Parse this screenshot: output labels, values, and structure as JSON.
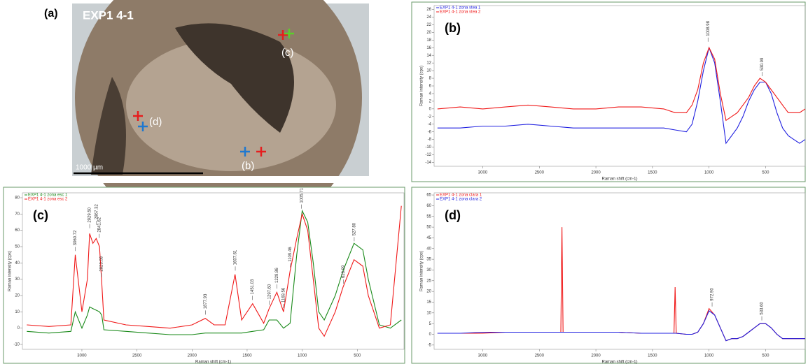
{
  "panel_a": {
    "label": "(a)",
    "title": "EXP1 4-1",
    "scale_bar": "1000 µm",
    "markers": [
      "(c)",
      "(d)",
      "(b)"
    ]
  },
  "chart_data": [
    {
      "type": "line",
      "panel_label": "(b)",
      "xlabel": "Raman shift (cm-1)",
      "ylabel": "Raman intensity (cps)",
      "legend": "upper left",
      "xlim": [
        3430,
        150
      ],
      "ylim": [
        -15,
        27
      ],
      "xticks": [
        3000,
        2500,
        2000,
        1500,
        1000,
        500
      ],
      "yticks": [
        -14,
        -12,
        -10,
        -8,
        -6,
        -4,
        -2,
        0,
        2,
        4,
        6,
        8,
        10,
        12,
        14,
        16,
        18,
        20,
        22,
        24,
        26
      ],
      "x": [
        3400,
        3200,
        3000,
        2800,
        2600,
        2400,
        2200,
        2000,
        1800,
        1600,
        1400,
        1300,
        1200,
        1150,
        1100,
        1050,
        1000,
        950,
        900,
        850,
        800,
        750,
        700,
        650,
        600,
        550,
        500,
        450,
        400,
        350,
        300,
        250,
        200,
        150
      ],
      "series": [
        {
          "name": "EXP1 4-1 zona stea 1",
          "color": "#1f1fe0",
          "values": [
            -5,
            -5,
            -4.5,
            -4.5,
            -4,
            -4.5,
            -5,
            -5,
            -5,
            -5,
            -5,
            -5.5,
            -6,
            -4,
            2,
            10,
            16,
            12,
            2,
            -9,
            -7,
            -5,
            -2,
            2,
            5,
            7,
            7,
            4,
            -1,
            -5,
            -7,
            -8,
            -9,
            -8
          ]
        },
        {
          "name": "EXP1 4-1 zona stea 2",
          "color": "#f01818",
          "values": [
            0,
            0.5,
            0,
            0.5,
            1,
            0.5,
            0,
            0,
            0.5,
            0.5,
            0,
            -1,
            -1,
            1,
            5,
            12,
            16,
            13,
            4,
            -3,
            -2,
            -1,
            1,
            3,
            6,
            8,
            7,
            5,
            3,
            1,
            -1,
            -1,
            -1,
            0
          ]
        }
      ],
      "annotations": [
        {
          "x": 1008.98,
          "y": 17,
          "text": "1008.98"
        },
        {
          "x": 530.99,
          "y": 8,
          "text": "530.99"
        }
      ]
    },
    {
      "type": "line",
      "panel_label": "(c)",
      "xlabel": "Raman shift (cm-1)",
      "ylabel": "Raman intensity (cps)",
      "legend": "upper left",
      "xlim": [
        3540,
        76
      ],
      "ylim": [
        -13,
        83
      ],
      "xticks": [
        3000,
        2500,
        2000,
        1500,
        1000,
        500
      ],
      "yticks": [
        -10,
        0,
        10,
        20,
        30,
        40,
        50,
        60,
        70,
        80
      ],
      "x": [
        3500,
        3300,
        3100,
        3060,
        3000,
        2950,
        2930,
        2900,
        2870,
        2840,
        2820,
        2800,
        2600,
        2400,
        2200,
        2000,
        1880,
        1800,
        1700,
        1610,
        1550,
        1450,
        1350,
        1300,
        1230,
        1170,
        1110,
        1050,
        1000,
        950,
        900,
        850,
        800,
        700,
        630,
        530,
        450,
        400,
        300,
        200,
        100
      ],
      "series": [
        {
          "name": "EXP1 4-1 zona esc 1",
          "color": "#1a8a1a",
          "values": [
            -2,
            -3,
            -2,
            10,
            0,
            8,
            13,
            12,
            11,
            10,
            8,
            -1,
            -2,
            -3,
            -4,
            -4,
            -3,
            -3,
            -3,
            -3,
            -3,
            -2,
            -1,
            5,
            5,
            0,
            3,
            45,
            72,
            65,
            40,
            10,
            5,
            20,
            35,
            52,
            48,
            30,
            2,
            0,
            5
          ]
        },
        {
          "name": "EXP1 4-1 zona esc 2",
          "color": "#f01818",
          "values": [
            2,
            1,
            2,
            45,
            10,
            30,
            58,
            52,
            55,
            50,
            28,
            5,
            2,
            1,
            0,
            2,
            6,
            2,
            2,
            33,
            5,
            15,
            3,
            12,
            22,
            10,
            35,
            55,
            70,
            60,
            30,
            0,
            -5,
            10,
            25,
            42,
            38,
            20,
            0,
            2,
            75
          ]
        }
      ],
      "annotations": [
        {
          "x": 3060.72,
          "y": 46,
          "text": "3060.72"
        },
        {
          "x": 2929.5,
          "y": 60,
          "text": "2929.50"
        },
        {
          "x": 2867.32,
          "y": 62,
          "text": "2867.32"
        },
        {
          "x": 2841.62,
          "y": 54,
          "text": "2841.62"
        },
        {
          "x": 2823.08,
          "y": 30,
          "text": "2823.08"
        },
        {
          "x": 1877.93,
          "y": 7,
          "text": "1877.93"
        },
        {
          "x": 1607.61,
          "y": 34,
          "text": "1607.61"
        },
        {
          "x": 1451.03,
          "y": 16,
          "text": "1451.03"
        },
        {
          "x": 1297.6,
          "y": 13,
          "text": "1297.60"
        },
        {
          "x": 1229.86,
          "y": 23,
          "text": "1229.86"
        },
        {
          "x": 1169.56,
          "y": 11,
          "text": "1169.56"
        },
        {
          "x": 1109.46,
          "y": 36,
          "text": "1109.46"
        },
        {
          "x": 1005.71,
          "y": 72,
          "text": "1005.71"
        },
        {
          "x": 626.99,
          "y": 26,
          "text": "626.99"
        },
        {
          "x": 527.8,
          "y": 52,
          "text": "527.80"
        }
      ]
    },
    {
      "type": "line",
      "panel_label": "(d)",
      "xlabel": "Raman shift (cm-1)",
      "ylabel": "Raman intensity (cps)",
      "legend": "upper left",
      "xlim": [
        3430,
        150
      ],
      "ylim": [
        -7,
        66
      ],
      "xticks": [
        3000,
        2500,
        2000,
        1500,
        1000,
        500
      ],
      "yticks": [
        -5,
        0,
        5,
        10,
        15,
        20,
        25,
        30,
        35,
        40,
        45,
        50,
        55,
        60,
        65
      ],
      "x": [
        3400,
        3200,
        3000,
        2800,
        2600,
        2400,
        2310,
        2300,
        2290,
        2200,
        2000,
        1800,
        1600,
        1400,
        1310,
        1300,
        1290,
        1200,
        1150,
        1100,
        1050,
        1000,
        950,
        900,
        850,
        800,
        750,
        700,
        650,
        600,
        550,
        500,
        450,
        400,
        350,
        300,
        250,
        200,
        150
      ],
      "series": [
        {
          "name": "EXP1 4-1 zona clara 1",
          "color": "#f01818",
          "values": [
            0.5,
            0.5,
            0.5,
            1,
            1,
            1,
            1,
            50,
            1,
            1,
            1,
            1,
            0.5,
            0.5,
            0.5,
            22,
            0.5,
            0,
            0,
            1,
            5,
            12,
            9,
            3,
            -3,
            -2,
            -2,
            -1,
            1,
            3,
            5,
            5,
            3,
            0,
            -2,
            -2,
            -2,
            -2,
            -2
          ]
        },
        {
          "name": "EXP1 4-1 zona clara 2",
          "color": "#1f1fe0",
          "values": [
            0.5,
            0.5,
            1,
            1,
            1,
            1,
            1,
            1,
            1,
            1,
            1,
            1,
            0.5,
            0.5,
            0.5,
            0.5,
            0.5,
            0,
            0,
            1,
            5,
            11,
            9,
            3,
            -3,
            -2,
            -2,
            -1,
            1,
            3,
            5,
            5,
            3,
            0,
            -2,
            -2,
            -2,
            -2,
            -2
          ]
        }
      ],
      "annotations": [
        {
          "x": 972.9,
          "y": 12,
          "text": "972.90"
        },
        {
          "x": 533.6,
          "y": 5.5,
          "text": "533.60"
        }
      ]
    }
  ]
}
